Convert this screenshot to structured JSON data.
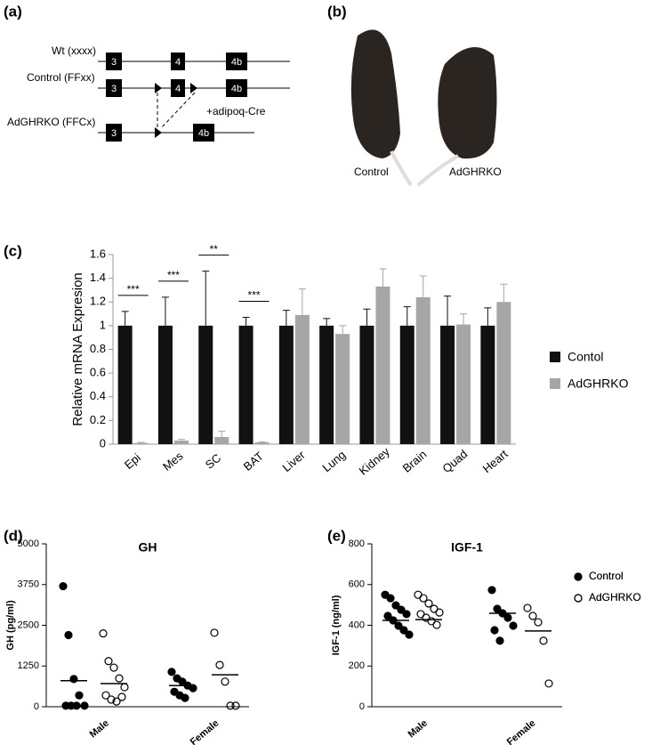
{
  "diagram": {
    "label": "(a)",
    "rows": [
      {
        "name": "Wt (xxxx)",
        "exons": [
          "3",
          "4",
          "4b"
        ]
      },
      {
        "name": "Control (FFxx)",
        "exons": [
          "3",
          "4",
          "4b"
        ]
      },
      {
        "name": "AdGHRKO (FFCx)",
        "exons": [
          "3",
          "4b"
        ]
      }
    ],
    "cre": "+adipoq-Cre"
  },
  "photo": {
    "label": "(b)",
    "captions": [
      "Control",
      "AdGHRKO"
    ]
  },
  "chart_data": [
    {
      "label": "(c)",
      "type": "bar",
      "y_label": "Relative mRNA Expresion",
      "categories": [
        "Epi",
        "Mes",
        "SC",
        "BAT",
        "Liver",
        "Lung",
        "Kidney",
        "Brain",
        "Quad",
        "Heart"
      ],
      "series": [
        {
          "name": "Contol",
          "color": "#111111",
          "values": [
            1,
            1,
            1,
            1,
            1,
            1,
            1,
            1,
            1,
            1
          ],
          "errors": [
            0.12,
            0.24,
            0.46,
            0.07,
            0.13,
            0.06,
            0.14,
            0.16,
            0.25,
            0.15
          ]
        },
        {
          "name": "AdGHRKO",
          "color": "#a6a6a6",
          "values": [
            0.01,
            0.03,
            0.06,
            0.015,
            1.09,
            0.93,
            1.33,
            1.24,
            1.01,
            1.2
          ],
          "errors": [
            0.005,
            0.01,
            0.05,
            0.005,
            0.22,
            0.07,
            0.15,
            0.18,
            0.09,
            0.15
          ]
        }
      ],
      "ylim": [
        0,
        1.6
      ],
      "yticks": [
        0,
        0.2,
        0.4,
        0.6,
        0.8,
        1,
        1.2,
        1.4,
        1.6
      ],
      "annotations": [
        {
          "category": 0,
          "text": "***"
        },
        {
          "category": 1,
          "text": "***"
        },
        {
          "category": 2,
          "text": "**"
        },
        {
          "category": 3,
          "text": "***"
        }
      ],
      "legend": "right"
    },
    {
      "label": "(d)",
      "type": "strip",
      "title": "GH",
      "y_label": "GH (pg/ml)",
      "categories": [
        "Male",
        "Female"
      ],
      "series": [
        {
          "fill": "#000000",
          "values": [
            [
              3700,
              2200,
              850,
              350,
              30,
              30,
              30,
              30
            ],
            [
              1070,
              870,
              770,
              650,
              570,
              460,
              350,
              270
            ]
          ],
          "means": [
            800,
            650
          ]
        },
        {
          "fill": "none",
          "values": [
            [
              2250,
              1400,
              1200,
              870,
              600,
              350,
              220,
              160,
              300
            ],
            [
              2270,
              1280,
              770,
              30,
              30
            ]
          ],
          "means": [
            710,
            980
          ]
        }
      ],
      "ylim": [
        0,
        5000
      ],
      "yticks": [
        0,
        1250,
        2500,
        3750,
        5000
      ]
    },
    {
      "label": "(e)",
      "type": "strip",
      "title": "IGF-1",
      "y_label": "IGF-1 (ng/ml)",
      "categories": [
        "Male",
        "Female"
      ],
      "series": [
        {
          "name": "Control",
          "fill": "#000000",
          "values": [
            [
              550,
              533,
              498,
              476,
              455,
              446,
              424,
              398,
              376,
              354
            ],
            [
              573,
              481,
              459,
              437,
              398,
              376,
              324
            ]
          ],
          "means": [
            424,
            459
          ]
        },
        {
          "name": "AdGHRKO",
          "fill": "none",
          "values": [
            [
              550,
              533,
              507,
              481,
              463,
              455,
              437,
              420,
              402
            ],
            [
              485,
              446,
              415,
              324,
              114
            ]
          ],
          "means": [
            428,
            372
          ]
        }
      ],
      "ylim": [
        0,
        800
      ],
      "yticks": [
        0,
        200,
        400,
        600,
        800
      ],
      "legend": "right"
    }
  ]
}
